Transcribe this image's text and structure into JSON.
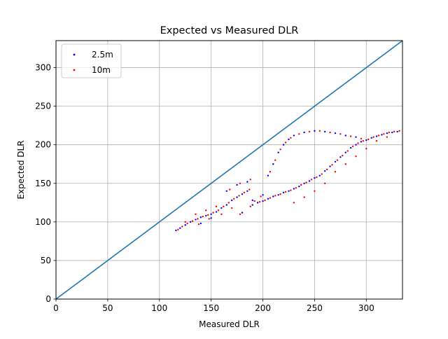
{
  "chart_data": {
    "type": "scatter",
    "title": "Expected vs Measured DLR",
    "xlabel": "Measured DLR",
    "ylabel": "Expected DLR",
    "xlim": [
      0,
      335
    ],
    "ylim": [
      0,
      335
    ],
    "x_ticks": [
      0,
      50,
      100,
      150,
      200,
      250,
      300
    ],
    "y_ticks": [
      0,
      50,
      100,
      150,
      200,
      250,
      300
    ],
    "grid": true,
    "legend_position": "top-left",
    "reference_line": {
      "from": [
        0,
        0
      ],
      "to": [
        335,
        335
      ],
      "color": "#1f77b4"
    },
    "series": [
      {
        "name": "2.5m",
        "color": "#0000ff",
        "points": [
          [
            116,
            89
          ],
          [
            120,
            92
          ],
          [
            125,
            96
          ],
          [
            130,
            100
          ],
          [
            135,
            103
          ],
          [
            140,
            106
          ],
          [
            145,
            108
          ],
          [
            150,
            110
          ],
          [
            155,
            113
          ],
          [
            160,
            118
          ],
          [
            165,
            122
          ],
          [
            170,
            128
          ],
          [
            175,
            132
          ],
          [
            180,
            136
          ],
          [
            185,
            140
          ],
          [
            190,
            128
          ],
          [
            195,
            125
          ],
          [
            200,
            127
          ],
          [
            205,
            130
          ],
          [
            210,
            133
          ],
          [
            215,
            135
          ],
          [
            220,
            138
          ],
          [
            225,
            140
          ],
          [
            230,
            143
          ],
          [
            235,
            146
          ],
          [
            240,
            150
          ],
          [
            245,
            153
          ],
          [
            250,
            157
          ],
          [
            255,
            160
          ],
          [
            260,
            166
          ],
          [
            265,
            172
          ],
          [
            270,
            178
          ],
          [
            275,
            184
          ],
          [
            280,
            190
          ],
          [
            285,
            196
          ],
          [
            290,
            200
          ],
          [
            295,
            204
          ],
          [
            300,
            206
          ],
          [
            305,
            209
          ],
          [
            310,
            211
          ],
          [
            315,
            213
          ],
          [
            320,
            215
          ],
          [
            325,
            216
          ],
          [
            330,
            217
          ],
          [
            205,
            160
          ],
          [
            210,
            175
          ],
          [
            215,
            190
          ],
          [
            220,
            200
          ],
          [
            225,
            207
          ],
          [
            230,
            212
          ],
          [
            240,
            216
          ],
          [
            250,
            218
          ],
          [
            260,
            217
          ],
          [
            270,
            215
          ],
          [
            280,
            212
          ],
          [
            290,
            210
          ],
          [
            180,
            112
          ],
          [
            190,
            122
          ],
          [
            200,
            135
          ],
          [
            165,
            140
          ],
          [
            175,
            148
          ],
          [
            185,
            152
          ],
          [
            140,
            98
          ],
          [
            150,
            105
          ]
        ]
      },
      {
        "name": "10m",
        "color": "#ff0000",
        "points": [
          [
            118,
            90
          ],
          [
            122,
            94
          ],
          [
            127,
            98
          ],
          [
            132,
            101
          ],
          [
            137,
            104
          ],
          [
            142,
            107
          ],
          [
            147,
            109
          ],
          [
            152,
            112
          ],
          [
            157,
            115
          ],
          [
            162,
            120
          ],
          [
            167,
            125
          ],
          [
            172,
            130
          ],
          [
            177,
            134
          ],
          [
            182,
            138
          ],
          [
            187,
            142
          ],
          [
            192,
            127
          ],
          [
            197,
            126
          ],
          [
            202,
            128
          ],
          [
            207,
            131
          ],
          [
            212,
            134
          ],
          [
            217,
            136
          ],
          [
            222,
            139
          ],
          [
            227,
            141
          ],
          [
            232,
            144
          ],
          [
            237,
            148
          ],
          [
            242,
            151
          ],
          [
            247,
            155
          ],
          [
            252,
            158
          ],
          [
            257,
            162
          ],
          [
            262,
            168
          ],
          [
            267,
            174
          ],
          [
            272,
            180
          ],
          [
            277,
            186
          ],
          [
            282,
            192
          ],
          [
            287,
            198
          ],
          [
            292,
            202
          ],
          [
            297,
            205
          ],
          [
            302,
            207
          ],
          [
            307,
            210
          ],
          [
            312,
            212
          ],
          [
            317,
            214
          ],
          [
            322,
            216
          ],
          [
            327,
            217
          ],
          [
            332,
            218
          ],
          [
            207,
            165
          ],
          [
            212,
            180
          ],
          [
            217,
            194
          ],
          [
            222,
            203
          ],
          [
            227,
            209
          ],
          [
            235,
            214
          ],
          [
            245,
            217
          ],
          [
            255,
            218
          ],
          [
            265,
            216
          ],
          [
            275,
            214
          ],
          [
            285,
            211
          ],
          [
            295,
            208
          ],
          [
            178,
            110
          ],
          [
            188,
            120
          ],
          [
            198,
            133
          ],
          [
            168,
            142
          ],
          [
            178,
            150
          ],
          [
            188,
            155
          ],
          [
            138,
            97
          ],
          [
            148,
            104
          ],
          [
            125,
            100
          ],
          [
            135,
            110
          ],
          [
            145,
            115
          ],
          [
            155,
            120
          ],
          [
            160,
            110
          ],
          [
            170,
            118
          ],
          [
            230,
            125
          ],
          [
            240,
            132
          ],
          [
            250,
            140
          ],
          [
            260,
            150
          ],
          [
            270,
            165
          ],
          [
            280,
            175
          ],
          [
            290,
            185
          ],
          [
            300,
            195
          ],
          [
            310,
            205
          ],
          [
            320,
            210
          ]
        ]
      }
    ]
  }
}
